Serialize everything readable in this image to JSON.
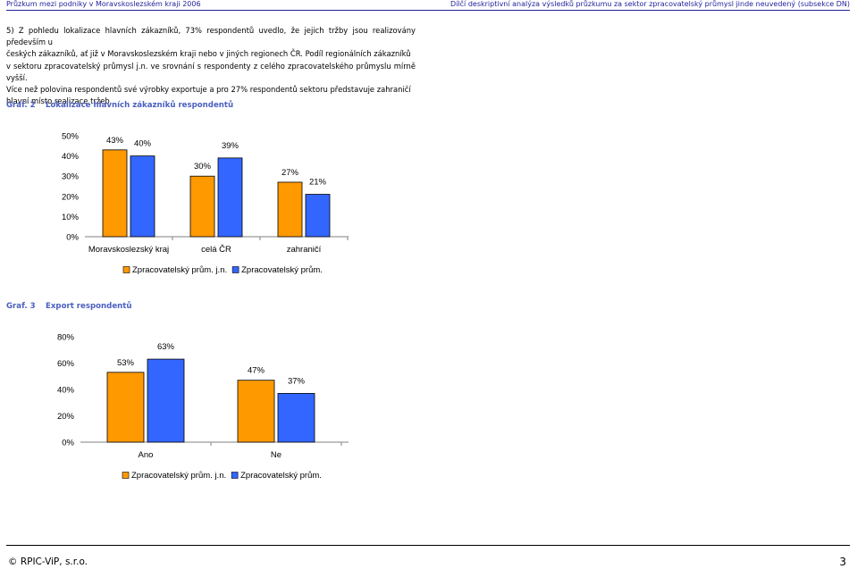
{
  "header": {
    "left": "Průzkum mezi podniky v Moravskoslezském kraji 2006",
    "right": "Dílčí deskriptivní analýza výsledků průzkumu za sektor zpracovatelský průmysl jinde neuvedený (subsekce DN)"
  },
  "paragraph_lines": [
    "5) Z pohledu lokalizace hlavních zákazníků, 73% respondentů uvedlo, že jejich tržby jsou realizovány především u",
    "českých zákazníků, ať již v Moravskoslezském kraji nebo v jiných regionech ČR. Podíl regionálních zákazníků",
    "v sektoru zpracovatelský průmysl j.n. ve srovnání s respondenty z celého zpracovatelského průmyslu mírně vyšší.",
    "Více než polovina respondentů své výrobky exportuje a pro 27% respondentů sektoru představuje zahraničí",
    "hlavní místo realizace tržeb."
  ],
  "graph2": {
    "number": "Graf. 2",
    "title": "Lokalizace hlavních zákazníků respondentů"
  },
  "graph3": {
    "number": "Graf. 3",
    "title": "Export respondentů"
  },
  "colors": {
    "series1": "#ff9900",
    "series2": "#3366ff",
    "header": "#1f1f9c",
    "title": "#4a5fc0"
  },
  "chart_data": [
    {
      "type": "bar",
      "categories": [
        "Moravskoslezský kraj",
        "celá ČR",
        "zahraničí"
      ],
      "series": [
        {
          "name": "Zpracovatelský prům. j.n.",
          "values": [
            43,
            30,
            27
          ]
        },
        {
          "name": "Zpracovatelský prům.",
          "values": [
            40,
            39,
            21
          ]
        }
      ],
      "data_labels": [
        [
          "43%",
          "30%",
          "27%"
        ],
        [
          "40%",
          "39%",
          "21%"
        ]
      ],
      "ylim": [
        0,
        50
      ],
      "yticks": [
        "0%",
        "10%",
        "20%",
        "30%",
        "40%",
        "50%"
      ],
      "legend": "bottom"
    },
    {
      "type": "bar",
      "categories": [
        "Ano",
        "Ne"
      ],
      "series": [
        {
          "name": "Zpracovatelský prům. j.n.",
          "values": [
            53,
            47
          ]
        },
        {
          "name": "Zpracovatelský prům.",
          "values": [
            63,
            37
          ]
        }
      ],
      "data_labels": [
        [
          "53%",
          "47%"
        ],
        [
          "63%",
          "37%"
        ]
      ],
      "ylim": [
        0,
        80
      ],
      "yticks": [
        "0%",
        "20%",
        "40%",
        "60%",
        "80%"
      ],
      "legend": "bottom"
    }
  ],
  "footer": {
    "copyright": "© RPIC-ViP, s.r.o.",
    "page": "3"
  }
}
